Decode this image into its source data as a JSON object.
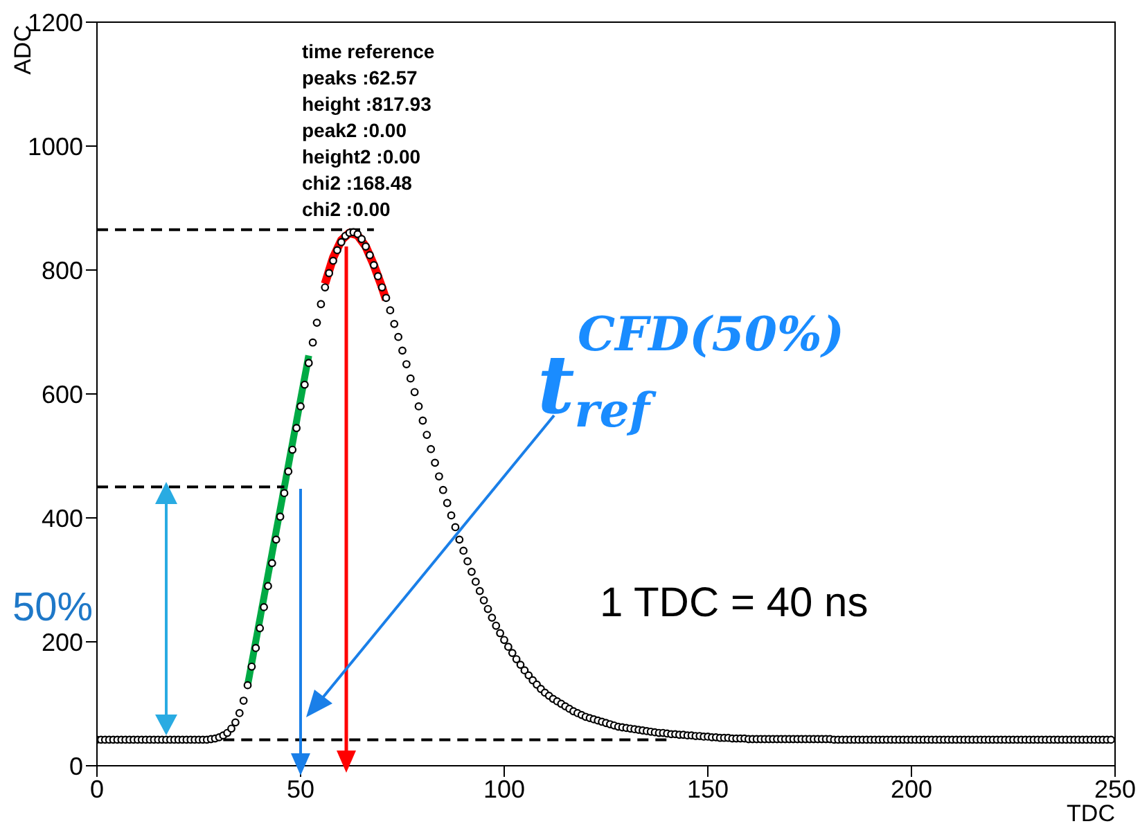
{
  "chart_data": {
    "type": "scatter",
    "xlabel": "TDC",
    "ylabel": "ADC",
    "xlim": [
      0,
      250
    ],
    "xticks": [
      0,
      50,
      100,
      150,
      200,
      250
    ],
    "ylim": [
      0,
      1200
    ],
    "yticks": [
      0,
      200,
      400,
      600,
      800,
      1000,
      1200
    ],
    "x": [
      0,
      1,
      2,
      3,
      4,
      5,
      6,
      7,
      8,
      9,
      10,
      11,
      12,
      13,
      14,
      15,
      16,
      17,
      18,
      19,
      20,
      21,
      22,
      23,
      24,
      25,
      26,
      27,
      28,
      29,
      30,
      31,
      32,
      33,
      34,
      35,
      36,
      37,
      38,
      39,
      40,
      41,
      42,
      43,
      44,
      45,
      46,
      47,
      48,
      49,
      50,
      51,
      52,
      53,
      54,
      55,
      56,
      57,
      58,
      59,
      60,
      61,
      62,
      63,
      64,
      65,
      66,
      67,
      68,
      69,
      70,
      71,
      72,
      73,
      74,
      75,
      76,
      77,
      78,
      79,
      80,
      81,
      82,
      83,
      84,
      85,
      86,
      87,
      88,
      89,
      90,
      91,
      92,
      93,
      94,
      95,
      96,
      97,
      98,
      99,
      100,
      101,
      102,
      103,
      104,
      105,
      106,
      107,
      108,
      109,
      110,
      111,
      112,
      113,
      114,
      115,
      116,
      117,
      118,
      119,
      120,
      121,
      122,
      123,
      124,
      125,
      126,
      127,
      128,
      129,
      130,
      131,
      132,
      133,
      134,
      135,
      136,
      137,
      138,
      139,
      140,
      141,
      142,
      143,
      144,
      145,
      146,
      147,
      148,
      149,
      150,
      151,
      152,
      153,
      154,
      155,
      156,
      157,
      158,
      159,
      160,
      161,
      162,
      163,
      164,
      165,
      166,
      167,
      168,
      169,
      170,
      171,
      172,
      173,
      174,
      175,
      176,
      177,
      178,
      179,
      180,
      181,
      182,
      183,
      184,
      185,
      186,
      187,
      188,
      189,
      190,
      191,
      192,
      193,
      194,
      195,
      196,
      197,
      198,
      199,
      200,
      201,
      202,
      203,
      204,
      205,
      206,
      207,
      208,
      209,
      210,
      211,
      212,
      213,
      214,
      215,
      216,
      217,
      218,
      219,
      220,
      221,
      222,
      223,
      224,
      225,
      226,
      227,
      228,
      229,
      230,
      231,
      232,
      233,
      234,
      235,
      236,
      237,
      238,
      239,
      240,
      241,
      242,
      243,
      244,
      245,
      246,
      247,
      248,
      249
    ],
    "series": [
      {
        "color": "#000000",
        "marker": "circle",
        "values": [
          42,
          42,
          42,
          42,
          42,
          42,
          42,
          42,
          42,
          42,
          42,
          42,
          42,
          42,
          42,
          42,
          42,
          42,
          42,
          42,
          42,
          42,
          42,
          42,
          42,
          42,
          42,
          42,
          43,
          44,
          46,
          49,
          53,
          60,
          70,
          85,
          105,
          130,
          160,
          190,
          222,
          256,
          290,
          327,
          365,
          402,
          440,
          475,
          510,
          545,
          580,
          615,
          650,
          683,
          715,
          745,
          772,
          795,
          815,
          832,
          845,
          855,
          860,
          861,
          858,
          850,
          838,
          824,
          808,
          790,
          772,
          755,
          735,
          713,
          692,
          670,
          648,
          625,
          603,
          580,
          557,
          534,
          511,
          489,
          467,
          445,
          424,
          404,
          385,
          365,
          347,
          330,
          313,
          297,
          282,
          267,
          253,
          239,
          226,
          214,
          203,
          192,
          182,
          172,
          163,
          154,
          146,
          138,
          131,
          124,
          118,
          113,
          108,
          104,
          100,
          96,
          92,
          88,
          85,
          82,
          79,
          77,
          75,
          73,
          71,
          69,
          67,
          65,
          63,
          62,
          61,
          60,
          59,
          58,
          57,
          56,
          55,
          54,
          53,
          53,
          52,
          51,
          51,
          50,
          50,
          49,
          49,
          48,
          48,
          47,
          47,
          46,
          46,
          45,
          45,
          45,
          44,
          44,
          44,
          44,
          43,
          43,
          43,
          43,
          43,
          43,
          43,
          43,
          43,
          43,
          43,
          43,
          43,
          43,
          43,
          43,
          43,
          43,
          43,
          43,
          43,
          42,
          42,
          42,
          42,
          42,
          42,
          42,
          42,
          42,
          42,
          42,
          42,
          42,
          42,
          42,
          42,
          42,
          42,
          42,
          42,
          42,
          42,
          42,
          42,
          42,
          42,
          42,
          42,
          42,
          42,
          42,
          42,
          42,
          42,
          42,
          42,
          42,
          42,
          42,
          42,
          42,
          42,
          42,
          42,
          42,
          42,
          42,
          42,
          42,
          42,
          42,
          42,
          42,
          42,
          42,
          42,
          42,
          42,
          42,
          42,
          42,
          42,
          42,
          42,
          42,
          42,
          42,
          42,
          42
        ]
      },
      {
        "type": "line",
        "color": "#ff0000",
        "line_style": "solid",
        "x": [
          56,
          58,
          60,
          62,
          64,
          66,
          68,
          70,
          71
        ],
        "values": [
          778,
          820,
          848,
          860,
          856,
          838,
          808,
          772,
          752
        ]
      },
      {
        "type": "line",
        "color": "#00aa44",
        "line_style": "solid",
        "x": [
          37,
          52
        ],
        "values": [
          130,
          662
        ]
      },
      {
        "type": "line",
        "color": "#000000",
        "line_style": "dashed",
        "x": [
          0,
          68
        ],
        "values": [
          865,
          865
        ]
      },
      {
        "type": "line",
        "color": "#000000",
        "line_style": "dashed",
        "x": [
          0,
          46
        ],
        "values": [
          450,
          450
        ]
      },
      {
        "type": "line",
        "color": "#000000",
        "line_style": "dashed",
        "x": [
          31,
          140
        ],
        "values": [
          42,
          42
        ]
      }
    ],
    "annotations": [
      "time reference",
      "peaks :62.57",
      "height :817.93",
      "peak2 :0.00",
      "height2 :0.00",
      "chi2 :168.48",
      "chi2 :0.00",
      "50%",
      "t$_{ref}$$^{CFD(50%)}$",
      "1 TDC = 40 ns"
    ]
  }
}
